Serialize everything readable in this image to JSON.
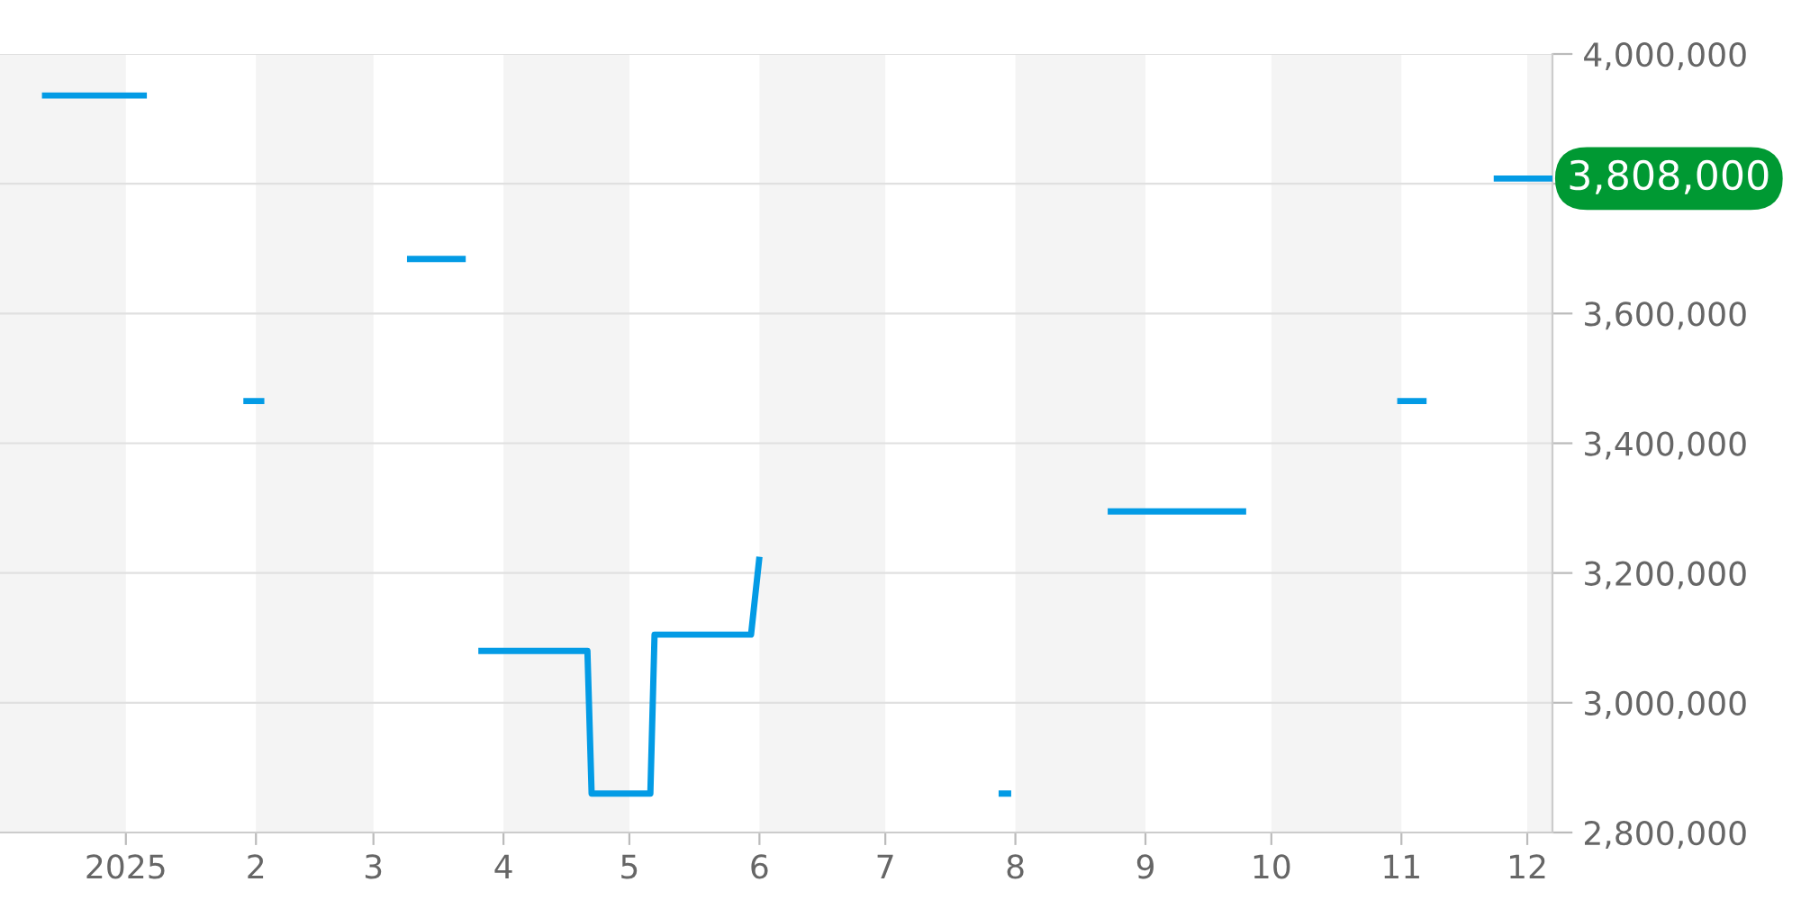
{
  "chart_data": {
    "type": "line",
    "x": [
      "2024-12-12",
      "2025-01-06",
      null,
      "2025-01-29",
      "2025-02-03",
      null,
      "2025-03-09",
      "2025-03-23",
      null,
      "2025-03-26",
      "2025-04-21",
      "2025-04-22",
      "2025-05-06",
      "2025-05-07",
      "2025-05-30",
      "2025-06-01",
      null,
      "2025-07-28",
      "2025-07-31",
      null,
      "2025-08-23",
      "2025-09-25",
      null,
      "2025-10-31",
      "2025-11-07",
      null,
      "2025-11-23",
      "2025-12-07"
    ],
    "series": [
      {
        "color": "#039be5",
        "values": [
          3936000,
          3936000,
          null,
          3465000,
          3465000,
          null,
          3684000,
          3684000,
          null,
          3080000,
          3080000,
          2860000,
          2860000,
          3105000,
          3105000,
          3225000,
          null,
          2860000,
          2860000,
          null,
          3295000,
          3295000,
          null,
          3465000,
          3465000,
          null,
          3808000,
          3808000
        ]
      }
    ],
    "xlim": [
      "2024-12-02",
      "2025-12-07"
    ],
    "xticks": [
      {
        "value": "2025-01-01",
        "label": "2025"
      },
      {
        "value": "2025-02-01",
        "label": "2"
      },
      {
        "value": "2025-03-01",
        "label": "3"
      },
      {
        "value": "2025-04-01",
        "label": "4"
      },
      {
        "value": "2025-05-01",
        "label": "5"
      },
      {
        "value": "2025-06-01",
        "label": "6"
      },
      {
        "value": "2025-07-01",
        "label": "7"
      },
      {
        "value": "2025-08-01",
        "label": "8"
      },
      {
        "value": "2025-09-01",
        "label": "9"
      },
      {
        "value": "2025-10-01",
        "label": "10"
      },
      {
        "value": "2025-11-01",
        "label": "11"
      },
      {
        "value": "2025-12-01",
        "label": "12"
      }
    ],
    "ylim": [
      2800000,
      4000000
    ],
    "yticks": [
      {
        "value": 2800000,
        "label": "2,800,000"
      },
      {
        "value": 3000000,
        "label": "3,000,000"
      },
      {
        "value": 3200000,
        "label": "3,200,000"
      },
      {
        "value": 3400000,
        "label": "3,400,000"
      },
      {
        "value": 3600000,
        "label": "3,600,000"
      },
      {
        "value": 3800000,
        "label": null
      },
      {
        "value": 4000000,
        "label": "4,000,000"
      }
    ],
    "grid": "y",
    "marker": "none",
    "line_style": "solid",
    "bands": [
      {
        "axis": "x",
        "from": "2024-12-02",
        "to": "2025-01-01",
        "color": "#f4f4f4"
      },
      {
        "axis": "x",
        "from": "2025-02-01",
        "to": "2025-03-01",
        "color": "#f4f4f4"
      },
      {
        "axis": "x",
        "from": "2025-04-01",
        "to": "2025-05-01",
        "color": "#f4f4f4"
      },
      {
        "axis": "x",
        "from": "2025-06-01",
        "to": "2025-07-01",
        "color": "#f4f4f4"
      },
      {
        "axis": "x",
        "from": "2025-08-01",
        "to": "2025-09-01",
        "color": "#f4f4f4"
      },
      {
        "axis": "x",
        "from": "2025-10-01",
        "to": "2025-11-01",
        "color": "#f4f4f4"
      },
      {
        "axis": "x",
        "from": "2025-12-01",
        "to": "2025-12-07",
        "color": "#f4f4f4"
      }
    ],
    "annotations": [
      {
        "text": "3,808,000",
        "x": "2025-12-07",
        "y": 3808000
      }
    ]
  }
}
